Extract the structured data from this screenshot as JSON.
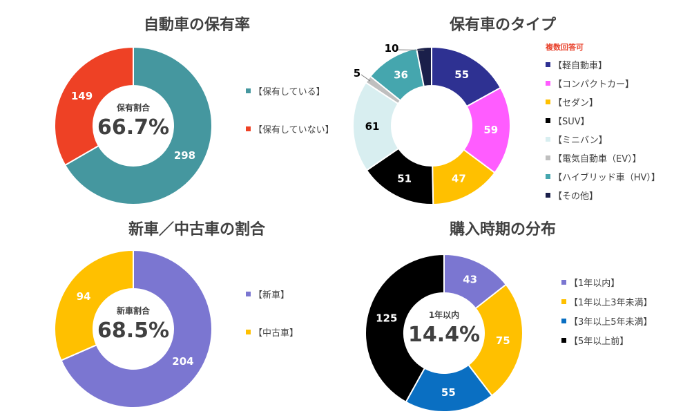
{
  "chart_data": [
    {
      "type": "pie",
      "title": "自動車の保有率",
      "categories": [
        "【保有している】",
        "【保有していない】"
      ],
      "values": [
        298,
        149
      ],
      "colors": [
        "#45979f",
        "#ee4125"
      ],
      "center_caption": "保有割合",
      "center_value": "66.7%"
    },
    {
      "type": "pie",
      "title": "保有車のタイプ",
      "legend_note": "複数回答可",
      "categories": [
        "【軽自動車】",
        "【コンパクトカー】",
        "【セダン】",
        "【SUV】",
        "【ミニバン】",
        "【電気自動車（EV）】",
        "【ハイブリッド車（HV）】",
        "【その他】"
      ],
      "values": [
        55,
        59,
        47,
        51,
        61,
        5,
        36,
        10
      ],
      "colors": [
        "#2e3192",
        "#ff5cff",
        "#ffc000",
        "#000000",
        "#d8eef0",
        "#bfbfbf",
        "#45a6ae",
        "#1a1f4a"
      ]
    },
    {
      "type": "pie",
      "title": "新車／中古車の割合",
      "categories": [
        "【新車】",
        "【中古車】"
      ],
      "values": [
        204,
        94
      ],
      "colors": [
        "#7b76d1",
        "#ffc000"
      ],
      "center_caption": "新車割合",
      "center_value": "68.5%"
    },
    {
      "type": "pie",
      "title": "購入時期の分布",
      "categories": [
        "【1年以内】",
        "【1年以上3年未満】",
        "【3年以上5年未満】",
        "【5年以上前】"
      ],
      "values": [
        43,
        75,
        55,
        125
      ],
      "colors": [
        "#7b76d1",
        "#ffc000",
        "#0a6fc2",
        "#000000"
      ],
      "center_caption": "1年以内",
      "center_value": "14.4%"
    }
  ]
}
